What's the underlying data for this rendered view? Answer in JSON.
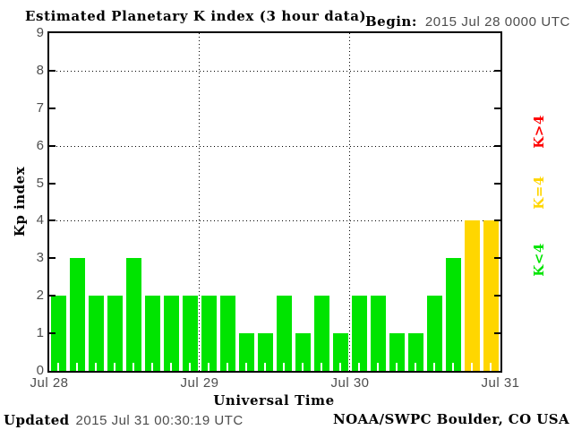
{
  "header": {
    "title": "Estimated Planetary K index (3 hour data)",
    "begin_label": "Begin:",
    "begin_value": "2015 Jul 28 0000 UTC"
  },
  "y_axis": {
    "label": "Kp index",
    "ticks": [
      0,
      1,
      2,
      3,
      4,
      5,
      6,
      7,
      8,
      9
    ]
  },
  "x_axis": {
    "label": "Universal Time",
    "day_labels": [
      "Jul 28",
      "Jul 29",
      "Jul 30",
      "Jul 31"
    ]
  },
  "legend": {
    "items": [
      {
        "label": "K>4",
        "color": "#ff0000"
      },
      {
        "label": "K=4",
        "color": "#ffd600"
      },
      {
        "label": "K<4",
        "color": "#00e400"
      }
    ]
  },
  "footer": {
    "updated_label": "Updated",
    "updated_value": "2015 Jul 31 00:30:19 UTC",
    "credit": "NOAA/SWPC Boulder, CO USA"
  },
  "chart_data": {
    "type": "bar",
    "title": "Estimated Planetary K index (3 hour data)",
    "xlabel": "Universal Time",
    "ylabel": "Kp index",
    "ylim": [
      0,
      9
    ],
    "begin": "2015 Jul 28 0000 UTC",
    "interval_hours": 3,
    "bars_per_day": 8,
    "grid": "dotted",
    "gridlines_y": [
      4,
      6,
      8
    ],
    "categories_days": [
      "Jul 28",
      "Jul 29",
      "Jul 30"
    ],
    "values": [
      2,
      3,
      2,
      2,
      3,
      2,
      2,
      2,
      2,
      2,
      1,
      1,
      2,
      1,
      2,
      1,
      2,
      2,
      1,
      1,
      2,
      3,
      4,
      4
    ],
    "color_rule": {
      "below_4": "#00e400",
      "equal_4": "#ffd600",
      "above_4": "#ff0000"
    },
    "legend_position": "right"
  }
}
